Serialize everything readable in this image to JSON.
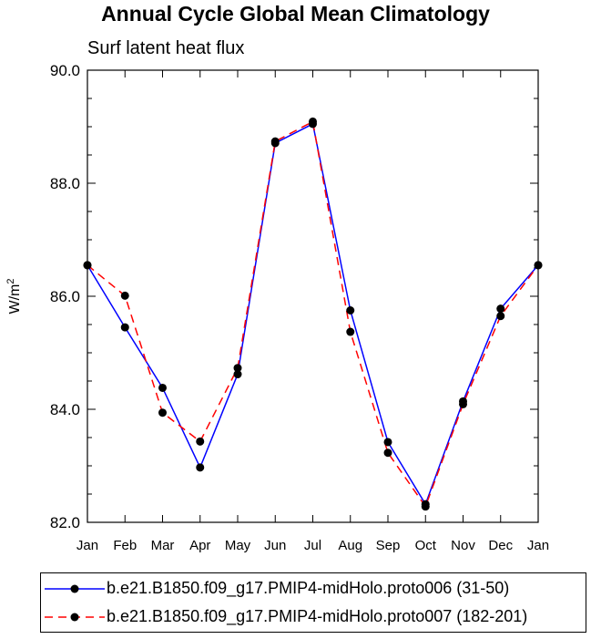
{
  "chart_data": {
    "type": "line",
    "title": "Annual Cycle Global Mean Climatology",
    "subtitle": "Surf latent heat flux",
    "ylabel": "W/m",
    "ylabel_sup": "2",
    "xlabel": "",
    "categories": [
      "Jan",
      "Feb",
      "Mar",
      "Apr",
      "May",
      "Jun",
      "Jul",
      "Aug",
      "Sep",
      "Oct",
      "Nov",
      "Dec",
      "Jan"
    ],
    "ylim": [
      82.0,
      90.0
    ],
    "yticks": [
      "82.0",
      "84.0",
      "86.0",
      "88.0",
      "90.0"
    ],
    "grid": false,
    "legend_position": "bottom",
    "series": [
      {
        "name": "b.e21.B1850.f09_g17.PMIP4-midHolo.proto006 (31-50)",
        "color": "#0000ff",
        "dash": "solid",
        "values": [
          86.55,
          85.45,
          84.38,
          82.97,
          84.62,
          88.71,
          89.05,
          85.75,
          83.42,
          82.32,
          84.14,
          85.78,
          86.55
        ]
      },
      {
        "name": "b.e21.B1850.f09_g17.PMIP4-midHolo.proto007 (182-201)",
        "color": "#ff0000",
        "dash": "dashed",
        "values": [
          86.55,
          86.01,
          83.94,
          83.43,
          84.73,
          88.74,
          89.09,
          85.37,
          83.23,
          82.28,
          84.09,
          85.65,
          86.55
        ]
      }
    ]
  }
}
